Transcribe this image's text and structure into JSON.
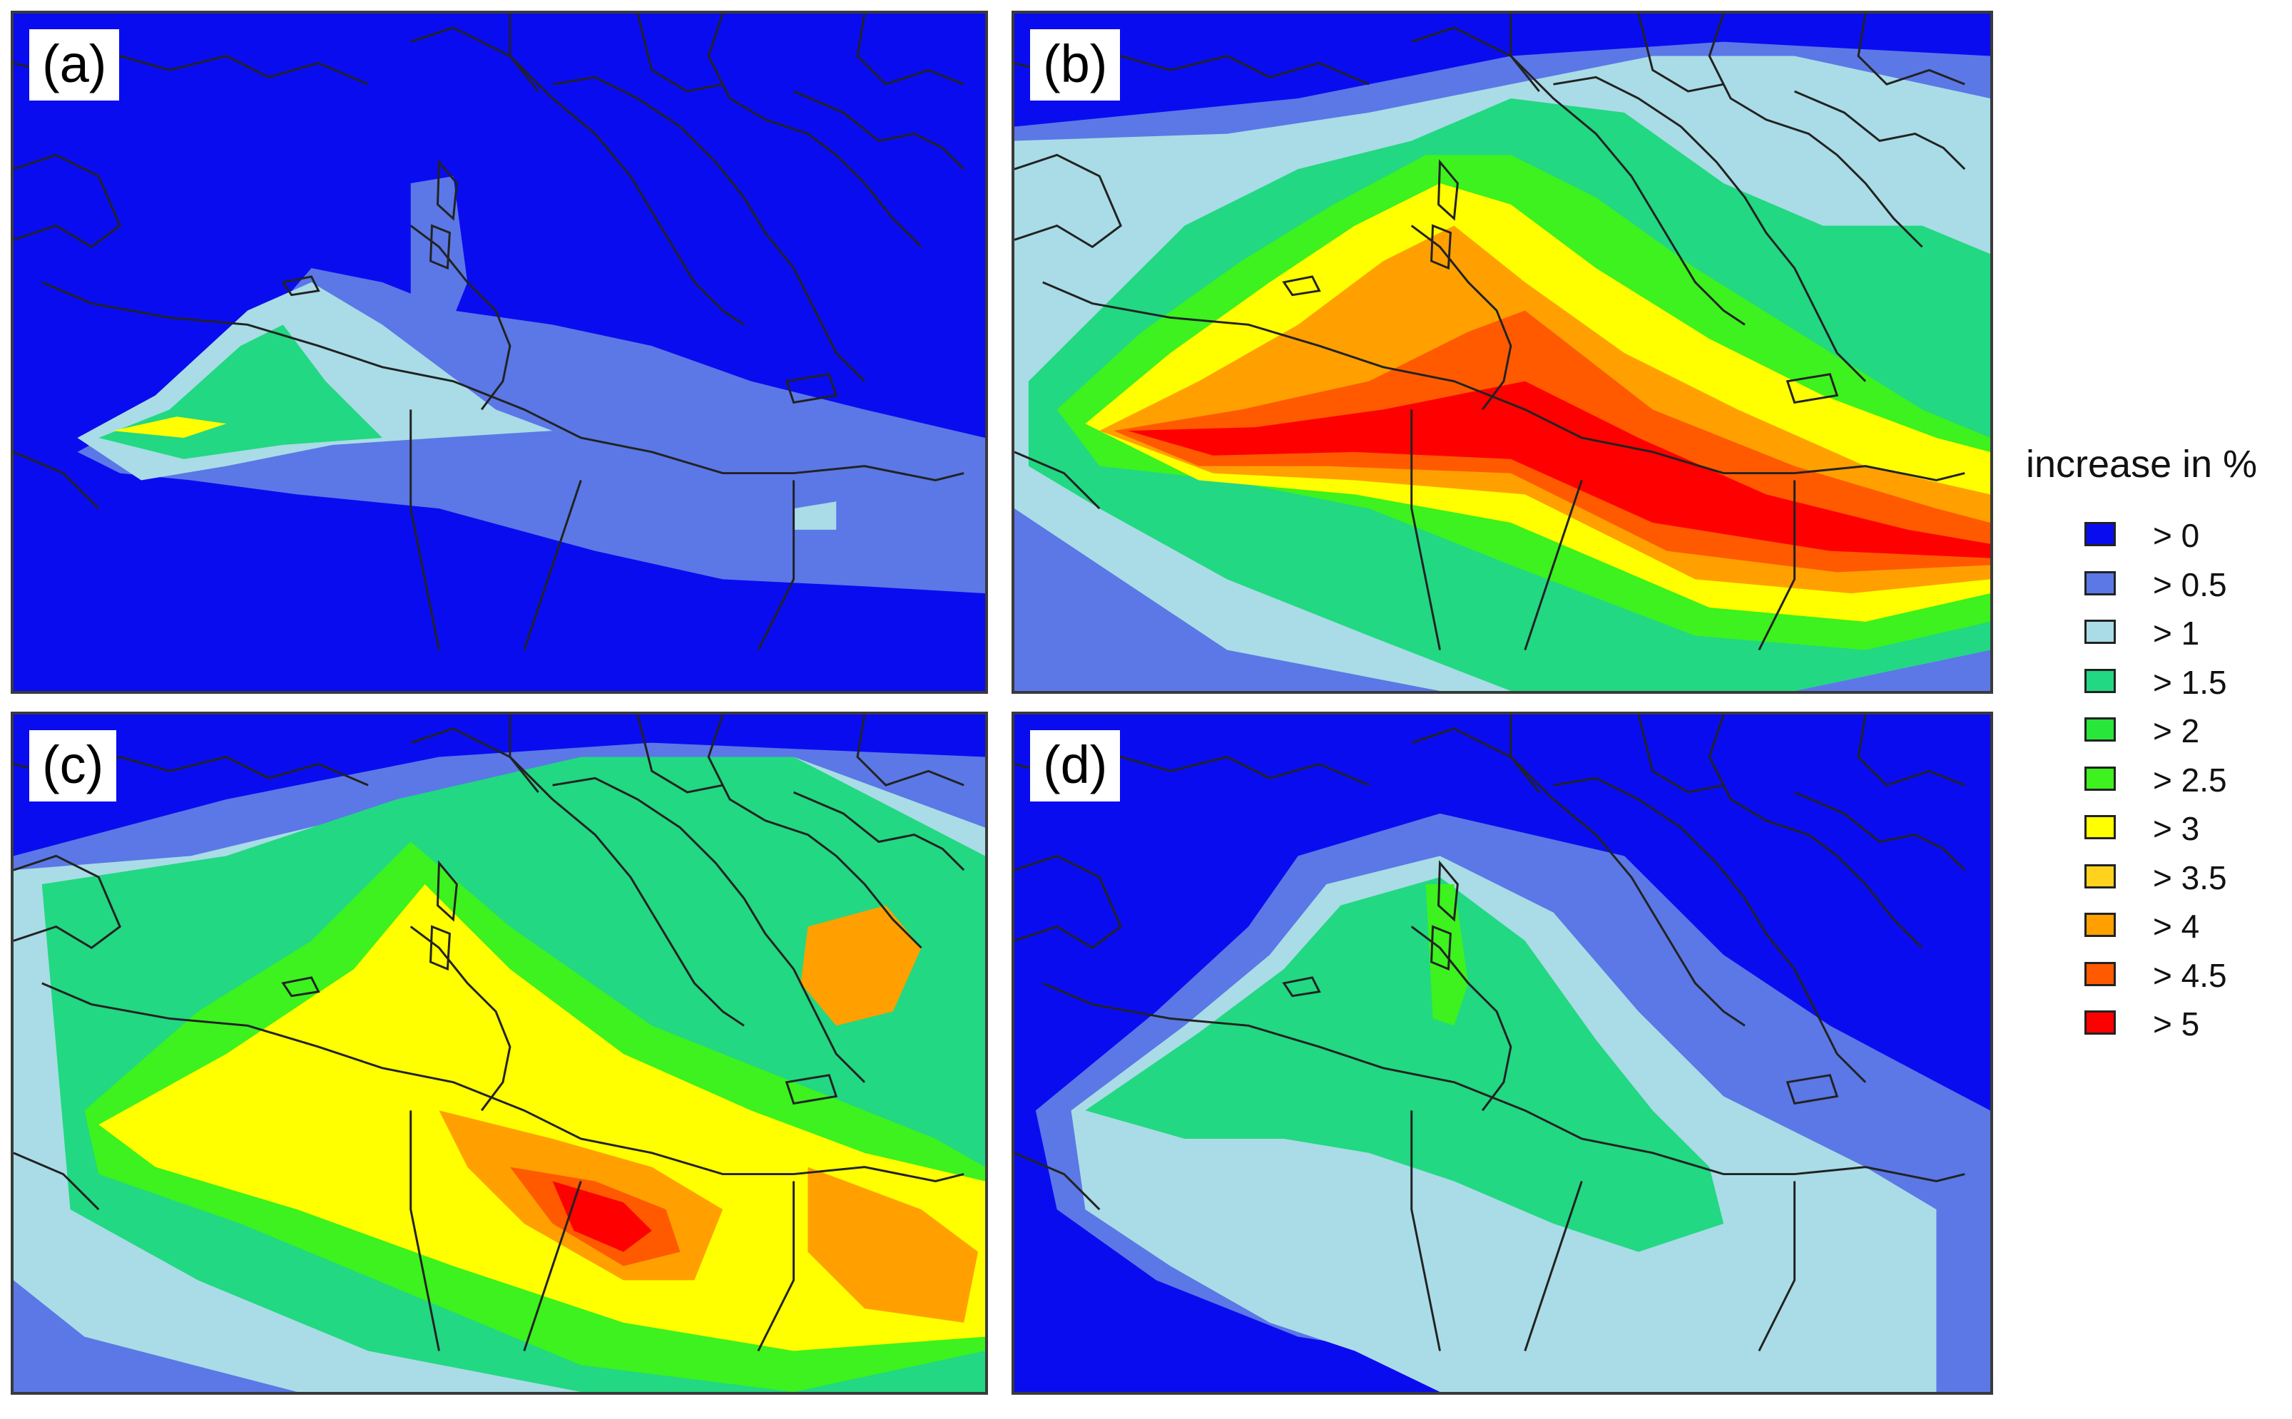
{
  "panels": [
    {
      "label": "(a)"
    },
    {
      "label": "(b)"
    },
    {
      "label": "(c)"
    },
    {
      "label": "(d)"
    }
  ],
  "legend": {
    "title": "increase in %",
    "items": [
      {
        "label": "> 0",
        "color": "#0a0cf0"
      },
      {
        "label": "> 0.5",
        "color": "#5b78e6"
      },
      {
        "label": "> 1",
        "color": "#a9dce6"
      },
      {
        "label": "> 1.5",
        "color": "#22d882"
      },
      {
        "label": "> 2",
        "color": "#28e63a"
      },
      {
        "label": "> 2.5",
        "color": "#3df21e"
      },
      {
        "label": "> 3",
        "color": "#ffff00"
      },
      {
        "label": "> 3.5",
        "color": "#ffd21e"
      },
      {
        "label": "> 4",
        "color": "#ffa000"
      },
      {
        "label": "> 4.5",
        "color": "#ff5a00"
      },
      {
        "label": "> 5",
        "color": "#ff0000"
      }
    ]
  }
}
